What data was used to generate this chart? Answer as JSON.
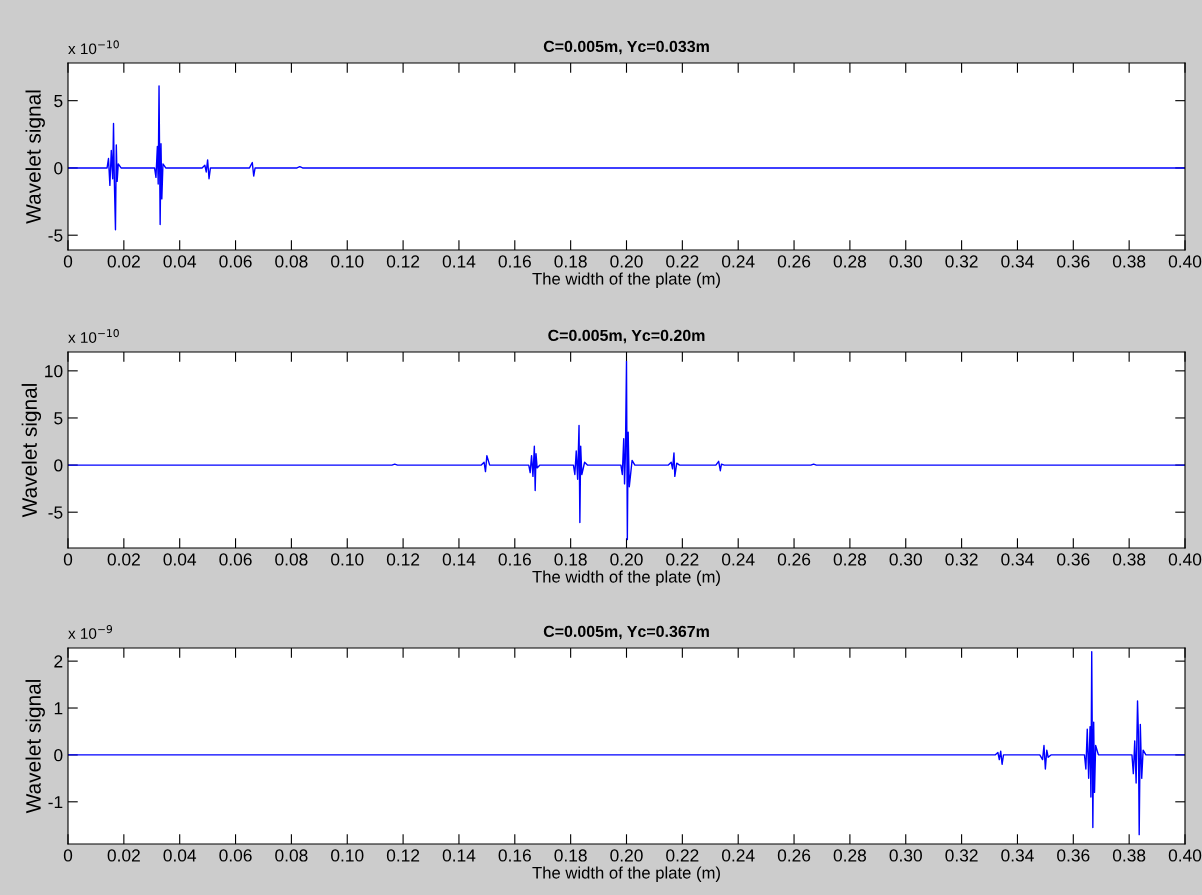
{
  "chart_data": [
    {
      "type": "line",
      "title": "C=0.005m, Yc=0.033m",
      "xlabel": "The width of the plate (m)",
      "ylabel": "Wavelet signal",
      "annotations": [
        "x 10$^{−10}$"
      ],
      "xlim": [
        0,
        0.4
      ],
      "ylim": [
        -6.1,
        7.8
      ],
      "xticks": [
        0,
        0.02,
        0.04,
        0.06,
        0.08,
        {
          "value": 0.1,
          "label": "0.10"
        },
        0.12,
        0.14,
        0.16,
        0.18,
        {
          "value": 0.2,
          "label": "0.20"
        },
        0.22,
        0.24,
        0.26,
        0.28,
        {
          "value": 0.3,
          "label": "0.30"
        },
        0.32,
        0.34,
        0.36,
        0.38,
        {
          "value": 0.4,
          "label": "0.40"
        }
      ],
      "yticks": [
        -5,
        0,
        5
      ],
      "grid": false,
      "legend": false,
      "series": [
        {
          "color": "#0000ff",
          "x": [
            0,
            0.014,
            0.0145,
            0.015,
            0.0155,
            0.016,
            0.0163,
            0.0166,
            0.017,
            0.0173,
            0.0176,
            0.018,
            0.019,
            0.031,
            0.0315,
            0.032,
            0.0323,
            0.0326,
            0.033,
            0.0333,
            0.0336,
            0.034,
            0.035,
            0.048,
            0.049,
            0.0495,
            0.05,
            0.0505,
            0.051,
            0.065,
            0.066,
            0.0665,
            0.067,
            0.082,
            0.083,
            0.084,
            0.4
          ],
          "values": [
            0,
            0,
            0.7,
            -1.3,
            1.3,
            -0.8,
            3.3,
            -1.0,
            -4.6,
            1.7,
            -1.0,
            0.3,
            0,
            0,
            -0.7,
            1.6,
            -1.2,
            6.1,
            -4.2,
            1.8,
            -2.3,
            0.3,
            0,
            0,
            0.2,
            -0.3,
            0.6,
            -0.8,
            0,
            0,
            0.4,
            -0.6,
            0,
            0,
            0.1,
            0,
            0
          ]
        }
      ]
    },
    {
      "type": "line",
      "title": "C=0.005m, Yc=0.20m",
      "xlabel": "The width of the plate (m)",
      "ylabel": "Wavelet signal",
      "annotations": [
        "x 10$^{−10}$"
      ],
      "xlim": [
        0,
        0.4
      ],
      "ylim": [
        -8.8,
        12
      ],
      "xticks": [
        0,
        0.02,
        0.04,
        0.06,
        0.08,
        {
          "value": 0.1,
          "label": "0.10"
        },
        0.12,
        0.14,
        0.16,
        0.18,
        {
          "value": 0.2,
          "label": "0.20"
        },
        0.22,
        0.24,
        0.26,
        0.28,
        {
          "value": 0.3,
          "label": "0.30"
        },
        0.32,
        0.34,
        0.36,
        0.38,
        {
          "value": 0.4,
          "label": "0.40"
        }
      ],
      "yticks": [
        -5,
        0,
        5,
        10
      ],
      "grid": false,
      "legend": false,
      "series": [
        {
          "color": "#0000ff",
          "x": [
            0,
            0.116,
            0.117,
            0.118,
            0.148,
            0.149,
            0.1495,
            0.15,
            0.151,
            0.165,
            0.1655,
            0.166,
            0.1665,
            0.167,
            0.1673,
            0.1676,
            0.168,
            0.169,
            0.181,
            0.1815,
            0.182,
            0.1825,
            0.183,
            0.1833,
            0.1836,
            0.184,
            0.185,
            0.186,
            0.198,
            0.1985,
            0.199,
            0.1993,
            0.1996,
            0.2,
            0.2003,
            0.2006,
            0.201,
            0.202,
            0.203,
            0.215,
            0.216,
            0.2165,
            0.217,
            0.2173,
            0.218,
            0.219,
            0.232,
            0.233,
            0.2336,
            0.234,
            0.235,
            0.266,
            0.267,
            0.268,
            0.4
          ],
          "values": [
            0,
            0,
            0.1,
            0,
            0,
            0.3,
            -0.7,
            1.0,
            0,
            0,
            -0.8,
            1.0,
            -1.2,
            2.0,
            -2.7,
            1.2,
            -0.3,
            0,
            0,
            -1.0,
            1.5,
            -1.5,
            4.2,
            -6.1,
            2.0,
            -1.0,
            0.3,
            0,
            0,
            -1.0,
            2.8,
            -2.0,
            1.0,
            11.0,
            -7.9,
            3.5,
            -2.3,
            0.5,
            0,
            0,
            0.3,
            -0.4,
            1.3,
            -1.2,
            0.2,
            0,
            0,
            0.4,
            -0.6,
            0.1,
            0,
            0,
            0.1,
            0,
            0
          ]
        }
      ]
    },
    {
      "type": "line",
      "title": "C=0.005m, Yc=0.367m",
      "xlabel": "The width of the plate (m)",
      "ylabel": "Wavelet signal",
      "annotations": [
        "x 10$^{−9}$"
      ],
      "xlim": [
        0,
        0.4
      ],
      "ylim": [
        -1.9,
        2.28
      ],
      "xticks": [
        0,
        0.02,
        0.04,
        0.06,
        0.08,
        {
          "value": 0.1,
          "label": "0.10"
        },
        0.12,
        0.14,
        0.16,
        0.18,
        {
          "value": 0.2,
          "label": "0.20"
        },
        0.22,
        0.24,
        0.26,
        0.28,
        {
          "value": 0.3,
          "label": "0.30"
        },
        0.32,
        0.34,
        0.36,
        0.38,
        {
          "value": 0.4,
          "label": "0.40"
        }
      ],
      "yticks": [
        -1,
        0,
        1,
        2
      ],
      "grid": false,
      "legend": false,
      "series": [
        {
          "color": "#0000ff",
          "x": [
            0,
            0.332,
            0.333,
            0.3335,
            0.334,
            0.3345,
            0.335,
            0.348,
            0.349,
            0.3495,
            0.35,
            0.3505,
            0.351,
            0.352,
            0.364,
            0.3645,
            0.365,
            0.3655,
            0.366,
            0.3663,
            0.3666,
            0.367,
            0.3673,
            0.3676,
            0.368,
            0.369,
            0.381,
            0.3815,
            0.382,
            0.3825,
            0.383,
            0.3833,
            0.3836,
            0.384,
            0.3845,
            0.385,
            0.386,
            0.4
          ],
          "values": [
            0,
            0,
            0.05,
            -0.1,
            0.08,
            -0.2,
            0,
            0,
            -0.1,
            0.2,
            -0.3,
            0.1,
            -0.05,
            0,
            0,
            -0.3,
            0.55,
            -0.5,
            0.6,
            -0.9,
            2.2,
            -1.55,
            0.7,
            -0.8,
            0.2,
            0,
            0,
            -0.4,
            0.3,
            -0.6,
            1.15,
            0.5,
            -1.7,
            0.65,
            -0.5,
            0.1,
            0,
            0
          ]
        }
      ]
    }
  ]
}
